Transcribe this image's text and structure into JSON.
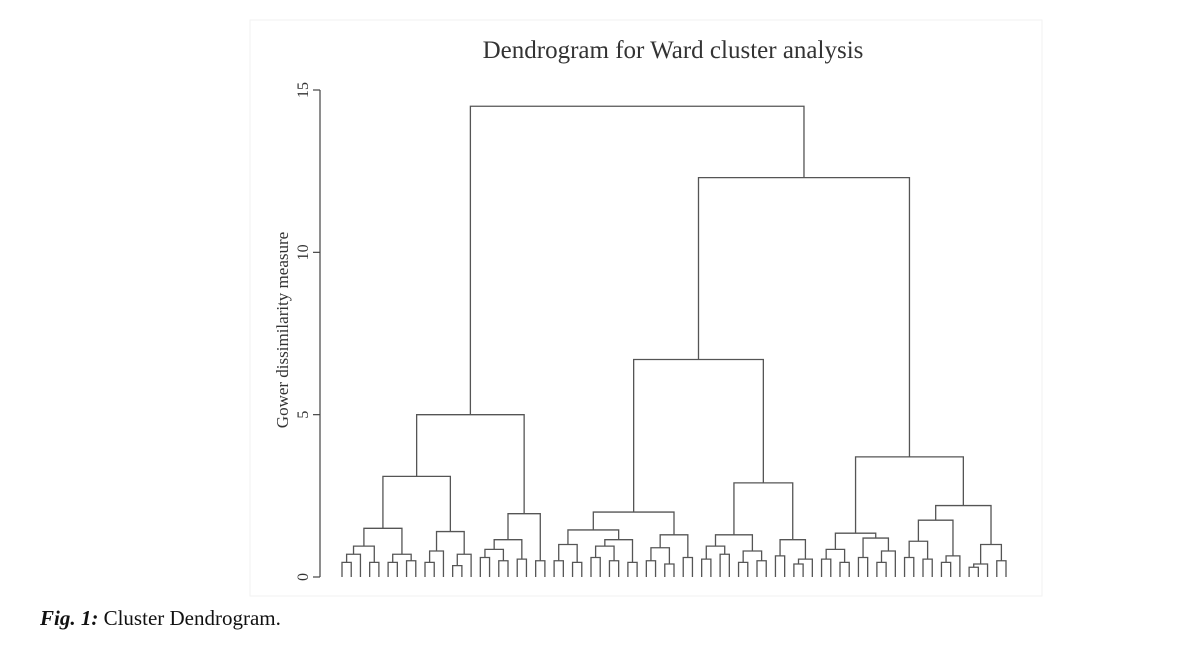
{
  "chart_data": {
    "type": "dendrogram",
    "title": "Dendrogram for Ward cluster analysis",
    "y_label": "Gower dissimilarity measure",
    "ylim": [
      0,
      15
    ],
    "yticks": [
      0,
      5,
      10,
      15
    ],
    "color": "#555555",
    "tree": [
      14.5,
      [
        5.0,
        [
          3.1,
          [
            1.5,
            [
              0.95,
              [
                0.7,
                [
                  0.45,
                  0,
                  0
                ],
                0
              ],
              [
                0.45,
                0,
                0
              ]
            ],
            [
              0.7,
              [
                0.45,
                0,
                0
              ],
              [
                0.5,
                0,
                0
              ]
            ]
          ],
          [
            1.4,
            [
              0.8,
              [
                0.45,
                0,
                0
              ],
              0
            ],
            [
              0.7,
              [
                0.35,
                0,
                0
              ],
              0
            ]
          ]
        ],
        [
          1.95,
          [
            1.15,
            [
              0.85,
              [
                0.6,
                0,
                0
              ],
              [
                0.5,
                0,
                0
              ]
            ],
            [
              0.55,
              0,
              0
            ]
          ],
          [
            0.5,
            0,
            0
          ]
        ]
      ],
      [
        12.3,
        [
          6.7,
          [
            2.0,
            [
              1.45,
              [
                1.0,
                [
                  0.5,
                  0,
                  0
                ],
                [
                  0.45,
                  0,
                  0
                ]
              ],
              [
                1.15,
                [
                  0.95,
                  [
                    0.6,
                    0,
                    0
                  ],
                  [
                    0.5,
                    0,
                    0
                  ]
                ],
                [
                  0.45,
                  0,
                  0
                ]
              ]
            ],
            [
              1.3,
              [
                0.9,
                [
                  0.5,
                  0,
                  0
                ],
                [
                  0.4,
                  0,
                  0
                ]
              ],
              [
                0.6,
                0,
                0
              ]
            ]
          ],
          [
            2.9,
            [
              1.3,
              [
                0.95,
                [
                  0.55,
                  0,
                  0
                ],
                [
                  0.7,
                  0,
                  0
                ]
              ],
              [
                0.8,
                [
                  0.45,
                  0,
                  0
                ],
                [
                  0.5,
                  0,
                  0
                ]
              ]
            ],
            [
              1.15,
              [
                0.65,
                0,
                0
              ],
              [
                0.55,
                [
                  0.4,
                  0,
                  0
                ],
                0
              ]
            ]
          ]
        ],
        [
          3.7,
          [
            1.35,
            [
              0.85,
              [
                0.55,
                0,
                0
              ],
              [
                0.45,
                0,
                0
              ]
            ],
            [
              1.2,
              [
                0.6,
                0,
                0
              ],
              [
                0.8,
                [
                  0.45,
                  0,
                  0
                ],
                0
              ]
            ]
          ],
          [
            2.2,
            [
              1.75,
              [
                1.1,
                [
                  0.6,
                  0,
                  0
                ],
                [
                  0.55,
                  0,
                  0
                ]
              ],
              [
                0.65,
                [
                  0.45,
                  0,
                  0
                ],
                0
              ]
            ],
            [
              1.0,
              [
                0.4,
                [
                  0.3,
                  0,
                  0
                ],
                0
              ],
              [
                0.5,
                0,
                0
              ]
            ]
          ]
        ]
      ]
    ]
  },
  "caption": {
    "label": "Fig. 1:",
    "text": "Cluster Dendrogram."
  }
}
